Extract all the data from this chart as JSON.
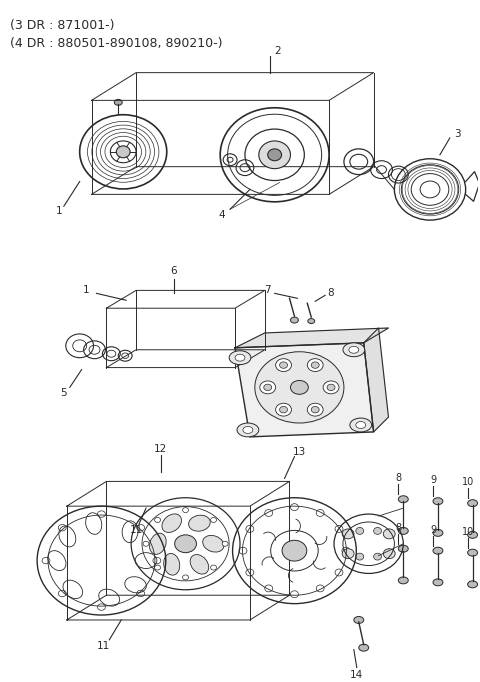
{
  "title_line1": "(3 DR : 871001-)",
  "title_line2": "(4 DR : 880501-890108, 890210-)",
  "bg_color": "#ffffff",
  "line_color": "#2a2a2a",
  "fig_width": 4.8,
  "fig_height": 6.82,
  "dpi": 100
}
